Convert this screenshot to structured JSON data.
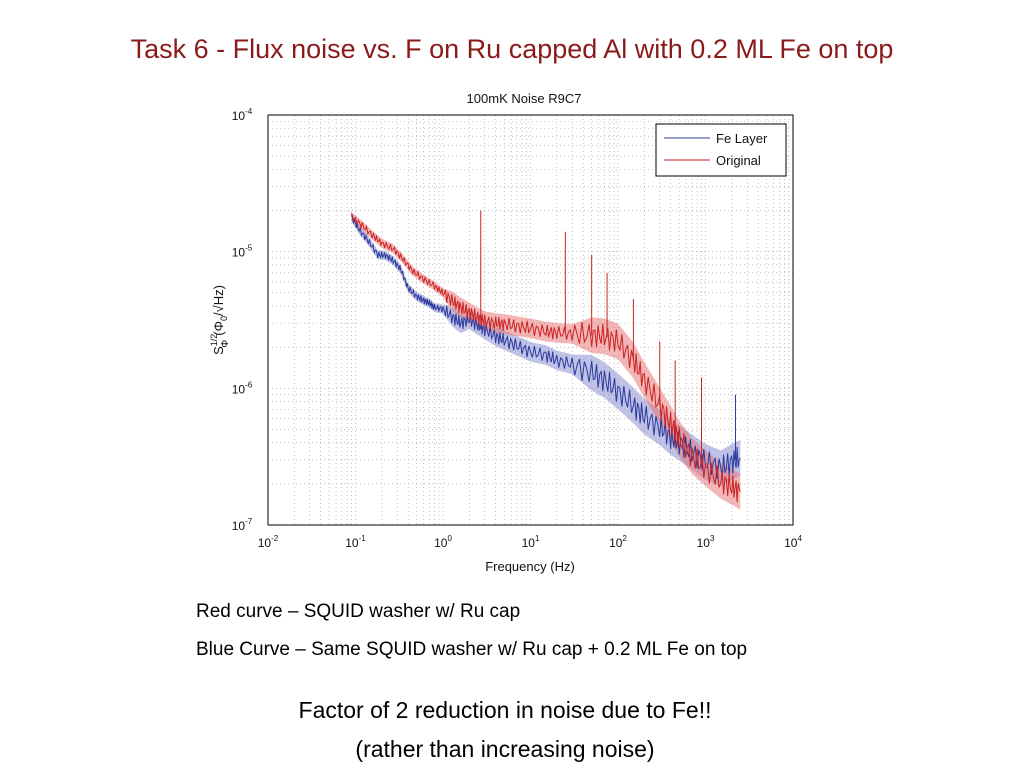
{
  "slide": {
    "title": "Task 6 - Flux noise vs. F on Ru capped Al with 0.2 ML Fe on top"
  },
  "chart_data": {
    "type": "line",
    "title": "100mK Noise R9C7",
    "xlabel": "Frequency (Hz)",
    "ylabel_base": "S",
    "ylabel_sup": "1/2",
    "ylabel_sub": "Φ",
    "ylabel_unit": "(Φ",
    "ylabel_unit_sub": "0",
    "ylabel_unit_tail": "/√Hz)",
    "x_scale": "log",
    "y_scale": "log",
    "xlim": [
      0.01,
      10000
    ],
    "ylim": [
      1e-07,
      0.0001
    ],
    "grid": true,
    "legend_position": "top-right",
    "x_ticks": [
      {
        "value": 0.01,
        "base": "10",
        "exp": "-2"
      },
      {
        "value": 0.1,
        "base": "10",
        "exp": "-1"
      },
      {
        "value": 1,
        "base": "10",
        "exp": "0"
      },
      {
        "value": 10,
        "base": "10",
        "exp": "1"
      },
      {
        "value": 100,
        "base": "10",
        "exp": "2"
      },
      {
        "value": 1000,
        "base": "10",
        "exp": "3"
      },
      {
        "value": 10000,
        "base": "10",
        "exp": "4"
      }
    ],
    "y_ticks": [
      {
        "value": 1e-07,
        "base": "10",
        "exp": "-7"
      },
      {
        "value": 1e-06,
        "base": "10",
        "exp": "-6"
      },
      {
        "value": 1e-05,
        "base": "10",
        "exp": "-5"
      },
      {
        "value": 0.0001,
        "base": "10",
        "exp": "-4"
      }
    ],
    "series": [
      {
        "name": "Fe Layer",
        "color": "#2b3a9e",
        "band_color": "#8a8fd0",
        "x": [
          0.09,
          0.11,
          0.14,
          0.18,
          0.22,
          0.27,
          0.33,
          0.4,
          0.5,
          0.6,
          0.7,
          0.8,
          1.0,
          1.3,
          1.6,
          2.0,
          2.5,
          3.0,
          4.0,
          5.0,
          7.0,
          10,
          15,
          20,
          30,
          50,
          70,
          100,
          150,
          200,
          300,
          400,
          500,
          700,
          1000,
          1500,
          2000,
          2500
        ],
        "y": [
          1.8e-05,
          1.45e-05,
          1.2e-05,
          9.5e-06,
          9.4e-06,
          8.6e-06,
          7.4e-06,
          5.4e-06,
          4.7e-06,
          4.4e-06,
          4.2e-06,
          3.9e-06,
          3.8e-06,
          3.3e-06,
          3e-06,
          3.2e-06,
          2.9e-06,
          2.7e-06,
          2.4e-06,
          2.25e-06,
          2.05e-06,
          1.85e-06,
          1.75e-06,
          1.6e-06,
          1.5e-06,
          1.3e-06,
          1.15e-06,
          9.5e-07,
          7.5e-07,
          6.2e-07,
          5.2e-07,
          4.4e-07,
          4e-07,
          3.4e-07,
          2.9e-07,
          2.6e-07,
          2.9e-07,
          3.1e-07
        ]
      },
      {
        "name": "Original",
        "color": "#cc2222",
        "band_color": "#e87a7a",
        "x": [
          0.09,
          0.12,
          0.16,
          0.2,
          0.27,
          0.35,
          0.45,
          0.6,
          0.8,
          1.0,
          1.3,
          1.6,
          2.0,
          2.5,
          3.0,
          4.0,
          5.0,
          7.0,
          10,
          15,
          20,
          30,
          50,
          70,
          100,
          150,
          200,
          300,
          400,
          500,
          700,
          1000,
          1500,
          2000,
          2500
        ],
        "y": [
          1.8e-05,
          1.55e-05,
          1.3e-05,
          1.15e-05,
          1.05e-05,
          8.8e-06,
          7.2e-06,
          6.3e-06,
          5.6e-06,
          5e-06,
          4.3e-06,
          3.9e-06,
          3.6e-06,
          3.3e-06,
          3.1e-06,
          3e-06,
          2.95e-06,
          2.85e-06,
          2.75e-06,
          2.6e-06,
          2.55e-06,
          2.5e-06,
          2.45e-06,
          2.4e-06,
          2.2e-06,
          1.6e-06,
          1.15e-06,
          7.5e-07,
          5.5e-07,
          4.3e-07,
          3.2e-07,
          2.6e-07,
          2.1e-07,
          1.9e-07,
          1.75e-07
        ]
      }
    ],
    "spikes": [
      {
        "series": "Original",
        "x": 2.7,
        "y": 2e-05
      },
      {
        "series": "Original",
        "x": 25,
        "y": 1.4e-05
      },
      {
        "series": "Original",
        "x": 50,
        "y": 9.5e-06
      },
      {
        "series": "Original",
        "x": 75,
        "y": 7e-06
      },
      {
        "series": "Original",
        "x": 150,
        "y": 4.5e-06
      },
      {
        "series": "Original",
        "x": 300,
        "y": 2.2e-06
      },
      {
        "series": "Original",
        "x": 450,
        "y": 1.6e-06
      },
      {
        "series": "Original",
        "x": 900,
        "y": 1.2e-06
      },
      {
        "series": "Fe Layer",
        "x": 2200,
        "y": 9e-07
      }
    ]
  },
  "notes": {
    "red_caption": "Red curve – SQUID washer w/ Ru cap",
    "blue_caption": "Blue Curve – Same SQUID washer w/ Ru cap + 0.2 ML Fe on top",
    "conclusion": "Factor of 2 reduction in noise due to Fe!!",
    "conclusion_sub": "(rather than increasing noise)"
  }
}
